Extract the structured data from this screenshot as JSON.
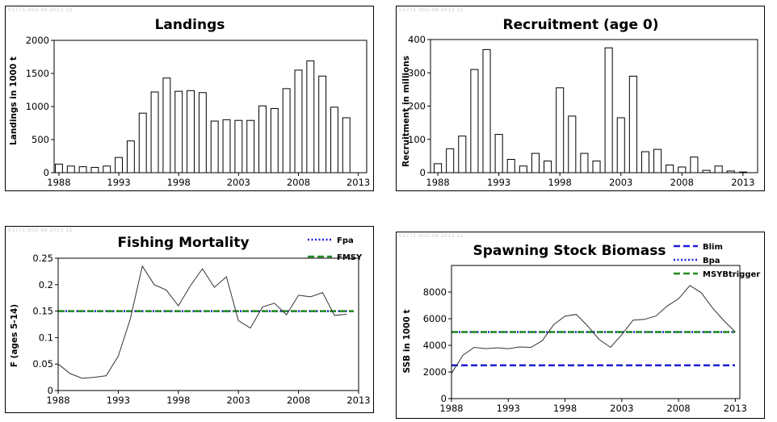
{
  "stamp": "01771 D02-09-2013 12",
  "chart_data": [
    {
      "id": "landings",
      "type": "bar",
      "title": "Landings",
      "xlabel": "",
      "ylabel": "Landings in 1000 t",
      "x": [
        1988,
        1989,
        1990,
        1991,
        1992,
        1993,
        1994,
        1995,
        1996,
        1997,
        1998,
        1999,
        2000,
        2001,
        2002,
        2003,
        2004,
        2005,
        2006,
        2007,
        2008,
        2009,
        2010,
        2011,
        2012
      ],
      "values": [
        130,
        100,
        90,
        80,
        100,
        230,
        480,
        900,
        1220,
        1430,
        1230,
        1240,
        1210,
        780,
        800,
        790,
        790,
        1010,
        970,
        1270,
        1550,
        1690,
        1460,
        990,
        830
      ],
      "xlim": [
        1987.6,
        2013.7
      ],
      "ylim": [
        0,
        2000
      ],
      "xticks": [
        "1988",
        "1993",
        "1998",
        "2003",
        "2008",
        "2013"
      ],
      "yticks": [
        "0",
        "500",
        "1000",
        "1500",
        "2000"
      ],
      "xtick_values": [
        1988,
        1993,
        1998,
        2003,
        2008,
        2013
      ],
      "ytick_values": [
        0,
        500,
        1000,
        1500,
        2000
      ],
      "grid": false,
      "legend": []
    },
    {
      "id": "recruitment",
      "type": "bar",
      "title": "Recruitment (age 0)",
      "xlabel": "",
      "ylabel": "Recruitment in millions",
      "x": [
        1988,
        1989,
        1990,
        1991,
        1992,
        1993,
        1994,
        1995,
        1996,
        1997,
        1998,
        1999,
        2000,
        2001,
        2002,
        2003,
        2004,
        2005,
        2006,
        2007,
        2008,
        2009,
        2010,
        2011,
        2012,
        2013
      ],
      "values": [
        27,
        72,
        110,
        310,
        370,
        115,
        40,
        20,
        58,
        35,
        255,
        170,
        58,
        35,
        375,
        165,
        290,
        63,
        70,
        23,
        17,
        47,
        7,
        20,
        5,
        2
      ],
      "xlim": [
        1987.4,
        2014.2
      ],
      "ylim": [
        0,
        400
      ],
      "xticks": [
        "1988",
        "1993",
        "1998",
        "2003",
        "2008",
        "2013"
      ],
      "yticks": [
        "0",
        "100",
        "200",
        "300",
        "400"
      ],
      "xtick_values": [
        1988,
        1993,
        1998,
        2003,
        2008,
        2013
      ],
      "ytick_values": [
        0,
        100,
        200,
        300,
        400
      ],
      "grid": false,
      "legend": []
    },
    {
      "id": "fishing-mortality",
      "type": "line",
      "title": "Fishing Mortality",
      "xlabel": "",
      "ylabel": "F (ages 5-14)",
      "x": [
        1988,
        1989,
        1990,
        1991,
        1992,
        1993,
        1994,
        1995,
        1996,
        1997,
        1998,
        1999,
        2000,
        2001,
        2002,
        2003,
        2004,
        2005,
        2006,
        2007,
        2008,
        2009,
        2010,
        2011,
        2012
      ],
      "series": [
        {
          "values": [
            0.05,
            0.032,
            0.023,
            0.025,
            0.028,
            0.065,
            0.135,
            0.235,
            0.2,
            0.19,
            0.16,
            0.198,
            0.23,
            0.195,
            0.215,
            0.132,
            0.118,
            0.158,
            0.165,
            0.143,
            0.18,
            0.177,
            0.185,
            0.142,
            0.144
          ],
          "color": "#333333",
          "style": "solid"
        }
      ],
      "reference_lines": [
        {
          "name": "Fpa",
          "value": 0.15,
          "color": "#1f1fd6",
          "style": "dotted"
        },
        {
          "name": "FMSY",
          "value": 0.15,
          "color": "#228B22",
          "style": "dashed"
        }
      ],
      "xlim": [
        1988,
        2013
      ],
      "ylim": [
        0,
        0.25
      ],
      "xticks": [
        "1988",
        "1993",
        "1998",
        "2003",
        "2008",
        "2013"
      ],
      "yticks": [
        "0",
        "0.05",
        "0.1",
        "0.15",
        "0.2",
        "0.25"
      ],
      "xtick_values": [
        1988,
        1993,
        1998,
        2003,
        2008,
        2013
      ],
      "ytick_values": [
        0,
        0.05,
        0.1,
        0.15,
        0.2,
        0.25
      ],
      "grid": false,
      "legend_position": "top-right"
    },
    {
      "id": "ssb",
      "type": "line",
      "title": "Spawning Stock Biomass",
      "xlabel": "",
      "ylabel": "SSB in 1000 t",
      "x": [
        1988,
        1989,
        1990,
        1991,
        1992,
        1993,
        1994,
        1995,
        1996,
        1997,
        1998,
        1999,
        2000,
        2001,
        2002,
        2003,
        2004,
        2005,
        2006,
        2007,
        2008,
        2009,
        2010,
        2011,
        2012,
        2013
      ],
      "series": [
        {
          "values": [
            1900,
            3250,
            3850,
            3750,
            3820,
            3750,
            3880,
            3850,
            4350,
            5550,
            6200,
            6320,
            5450,
            4450,
            3850,
            4800,
            5900,
            5950,
            6200,
            6950,
            7500,
            8500,
            7950,
            6800,
            5850,
            5000
          ],
          "color": "#333333",
          "style": "solid"
        }
      ],
      "reference_lines": [
        {
          "name": "Blim",
          "value": 2500,
          "color": "#1f1fd6",
          "style": "dashed"
        },
        {
          "name": "Bpa",
          "value": 5000,
          "color": "#1f1fd6",
          "style": "dotted"
        },
        {
          "name": "MSYBtrigger",
          "value": 5000,
          "color": "#228B22",
          "style": "dashed"
        }
      ],
      "xlim": [
        1988,
        2013.4
      ],
      "ylim": [
        0,
        10000
      ],
      "xticks": [
        "1988",
        "1993",
        "1998",
        "2003",
        "2008",
        "2013"
      ],
      "yticks": [
        "0",
        "2000",
        "4000",
        "6000",
        "8000"
      ],
      "xtick_values": [
        1988,
        1993,
        1998,
        2003,
        2008,
        2013
      ],
      "ytick_values": [
        0,
        2000,
        4000,
        6000,
        8000
      ],
      "grid": false,
      "legend_position": "top-right"
    }
  ]
}
